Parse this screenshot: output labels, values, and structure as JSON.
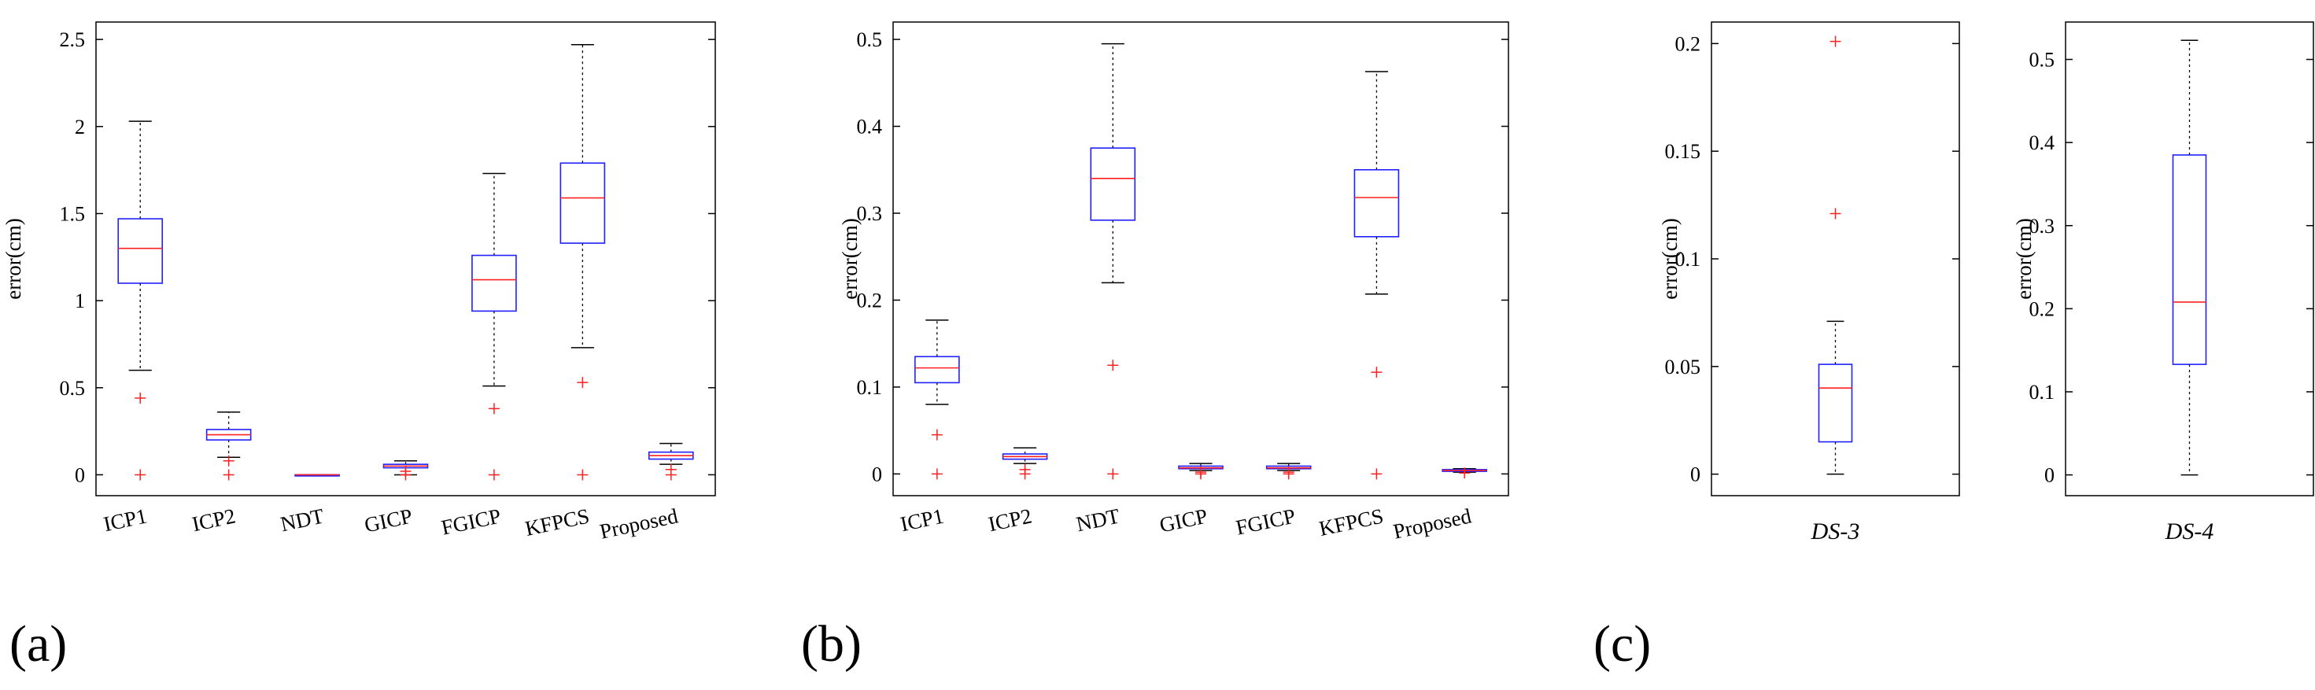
{
  "panels_labels": [
    "(a)",
    "(b)",
    "(c)"
  ],
  "chart_data": [
    {
      "id": "a",
      "type": "boxplot",
      "panel_label": "(a)",
      "ylabel": "error(cm)",
      "ylim": [
        -0.12,
        2.6
      ],
      "yticks": [
        0,
        0.5,
        1,
        1.5,
        2,
        2.5
      ],
      "ytick_labels": [
        "0",
        "0.5",
        "1",
        "1.5",
        "2",
        "2.5"
      ],
      "categories": [
        "ICP1",
        "ICP2",
        "NDT",
        "GICP",
        "FGICP",
        "KFPCS",
        "Proposed"
      ],
      "rotate_labels": true,
      "boxes": [
        {
          "min": 0.6,
          "q1": 1.1,
          "median": 1.3,
          "q3": 1.47,
          "max": 2.03,
          "outliers": [
            0.44,
            0.0
          ]
        },
        {
          "min": 0.1,
          "q1": 0.2,
          "median": 0.23,
          "q3": 0.26,
          "max": 0.36,
          "outliers": [
            0.08,
            0.0
          ]
        },
        {
          "min": 0.0,
          "q1": 0.0,
          "median": 0.0,
          "q3": 0.0,
          "max": 0.0,
          "outliers": []
        },
        {
          "min": 0.0,
          "q1": 0.04,
          "median": 0.05,
          "q3": 0.06,
          "max": 0.08,
          "outliers": [
            0.02,
            0.0
          ]
        },
        {
          "min": 0.51,
          "q1": 0.94,
          "median": 1.12,
          "q3": 1.26,
          "max": 1.73,
          "outliers": [
            0.38,
            0.0
          ]
        },
        {
          "min": 0.73,
          "q1": 1.33,
          "median": 1.59,
          "q3": 1.79,
          "max": 2.47,
          "outliers": [
            0.53,
            0.0
          ]
        },
        {
          "min": 0.06,
          "q1": 0.09,
          "median": 0.11,
          "q3": 0.13,
          "max": 0.18,
          "outliers": [
            0.03,
            0.0
          ]
        }
      ]
    },
    {
      "id": "b",
      "type": "boxplot",
      "panel_label": "(b)",
      "ylabel": "error(cm)",
      "ylim": [
        -0.025,
        0.52
      ],
      "yticks": [
        0,
        0.1,
        0.2,
        0.3,
        0.4,
        0.5
      ],
      "ytick_labels": [
        "0",
        "0.1",
        "0.2",
        "0.3",
        "0.4",
        "0.5"
      ],
      "categories": [
        "ICP1",
        "ICP2",
        "NDT",
        "GICP",
        "FGICP",
        "KFPCS",
        "Proposed"
      ],
      "rotate_labels": true,
      "boxes": [
        {
          "min": 0.08,
          "q1": 0.105,
          "median": 0.122,
          "q3": 0.135,
          "max": 0.177,
          "outliers": [
            0.045,
            0.0
          ]
        },
        {
          "min": 0.012,
          "q1": 0.017,
          "median": 0.02,
          "q3": 0.023,
          "max": 0.03,
          "outliers": [
            0.005,
            0.0
          ]
        },
        {
          "min": 0.22,
          "q1": 0.292,
          "median": 0.34,
          "q3": 0.375,
          "max": 0.495,
          "outliers": [
            0.125,
            0.0
          ]
        },
        {
          "min": 0.004,
          "q1": 0.006,
          "median": 0.007,
          "q3": 0.009,
          "max": 0.012,
          "outliers": [
            0.002,
            0.0
          ]
        },
        {
          "min": 0.004,
          "q1": 0.006,
          "median": 0.007,
          "q3": 0.009,
          "max": 0.012,
          "outliers": [
            0.002,
            0.0
          ]
        },
        {
          "min": 0.207,
          "q1": 0.273,
          "median": 0.318,
          "q3": 0.35,
          "max": 0.463,
          "outliers": [
            0.117,
            0.0
          ]
        },
        {
          "min": 0.002,
          "q1": 0.003,
          "median": 0.004,
          "q3": 0.005,
          "max": 0.006,
          "outliers": [
            0.001
          ]
        }
      ]
    },
    {
      "id": "c1",
      "type": "boxplot",
      "panel_label": "(c)",
      "ylabel": "error(cm)",
      "ylim": [
        -0.01,
        0.21
      ],
      "yticks": [
        0,
        0.05,
        0.1,
        0.15,
        0.2
      ],
      "ytick_labels": [
        "0",
        "0.05",
        "0.1",
        "0.15",
        "0.2"
      ],
      "categories": [
        "DS-3"
      ],
      "rotate_labels": false,
      "boxes": [
        {
          "min": 0.0,
          "q1": 0.015,
          "median": 0.04,
          "q3": 0.051,
          "max": 0.071,
          "outliers": [
            0.121,
            0.201
          ]
        }
      ]
    },
    {
      "id": "c2",
      "type": "boxplot",
      "panel_label": "",
      "ylabel": "error(cm)",
      "ylim": [
        -0.025,
        0.545
      ],
      "yticks": [
        0,
        0.1,
        0.2,
        0.3,
        0.4,
        0.5
      ],
      "ytick_labels": [
        "0",
        "0.1",
        "0.2",
        "0.3",
        "0.4",
        "0.5"
      ],
      "categories": [
        "DS-4"
      ],
      "rotate_labels": false,
      "boxes": [
        {
          "min": 0.0,
          "q1": 0.133,
          "median": 0.208,
          "q3": 0.385,
          "max": 0.523,
          "outliers": []
        }
      ]
    }
  ],
  "colors": {
    "box": "#2020ff",
    "median": "#ff2020",
    "whisker": "#000000",
    "cap": "#000000",
    "outlier": "#ff2020",
    "axis": "#000000"
  }
}
